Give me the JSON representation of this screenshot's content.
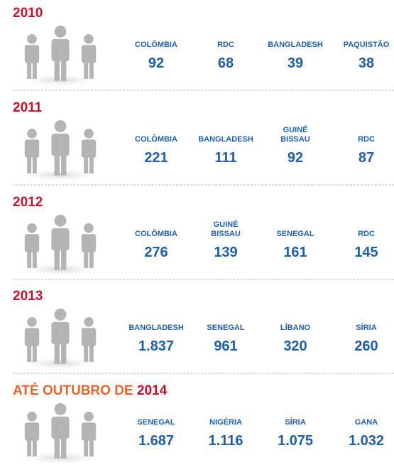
{
  "sections": [
    {
      "year": "2010",
      "countries": [
        {
          "name": [
            "COLÔMBIA"
          ],
          "value": "92"
        },
        {
          "name": [
            "RDC"
          ],
          "value": "68"
        },
        {
          "name": [
            "BANGLADESH"
          ],
          "value": "39"
        },
        {
          "name": [
            "PAQUISTÃO"
          ],
          "value": "38"
        }
      ]
    },
    {
      "year": "2011",
      "countries": [
        {
          "name": [
            "COLÔMBIA"
          ],
          "value": "221"
        },
        {
          "name": [
            "BANGLADESH"
          ],
          "value": "111"
        },
        {
          "name": [
            "GUINÉ",
            "BISSAU"
          ],
          "value": "92"
        },
        {
          "name": [
            "RDC"
          ],
          "value": "87"
        }
      ]
    },
    {
      "year": "2012",
      "countries": [
        {
          "name": [
            "COLÔMBIA"
          ],
          "value": "276"
        },
        {
          "name": [
            "GUINÉ",
            "BISSAU"
          ],
          "value": "139"
        },
        {
          "name": [
            "SENEGAL"
          ],
          "value": "161"
        },
        {
          "name": [
            "RDC"
          ],
          "value": "145"
        }
      ]
    },
    {
      "year": "2013",
      "countries": [
        {
          "name": [
            "BANGLADESH"
          ],
          "value": "1.837"
        },
        {
          "name": [
            "SENEGAL"
          ],
          "value": "961"
        },
        {
          "name": [
            "LÍBANO"
          ],
          "value": "320"
        },
        {
          "name": [
            "SÍRIA"
          ],
          "value": "260"
        }
      ]
    },
    {
      "prefix": "ATÉ OUTUBRO DE ",
      "year": "2014",
      "countries": [
        {
          "name": [
            "SENEGAL"
          ],
          "value": "1.687"
        },
        {
          "name": [
            "NIGÉRIA"
          ],
          "value": "1.116"
        },
        {
          "name": [
            "SÍRIA"
          ],
          "value": "1.075"
        },
        {
          "name": [
            "GANA"
          ],
          "value": "1.032"
        }
      ]
    }
  ]
}
